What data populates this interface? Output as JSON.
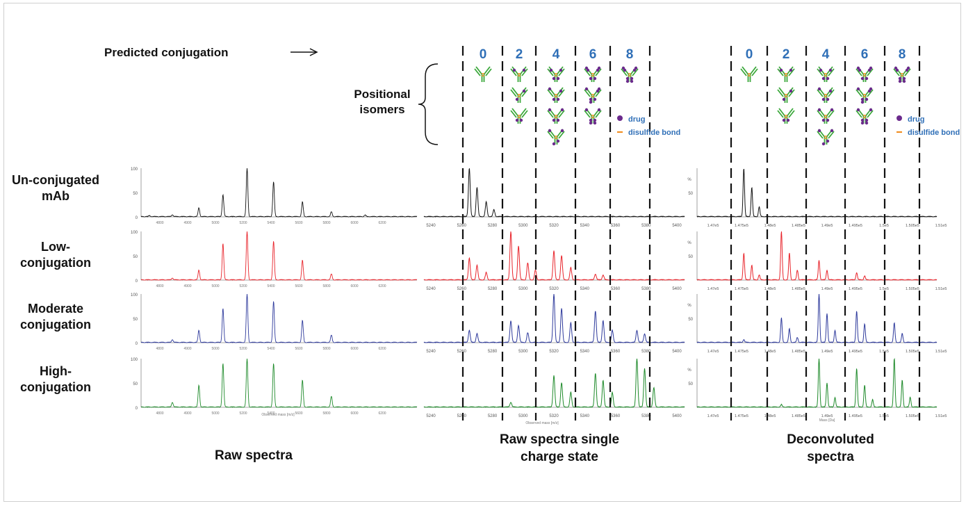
{
  "labels": {
    "predicted": "Predicted conjugation",
    "positional": "Positional isomers",
    "rows": [
      "Un-conjugated mAb",
      "Low-conjugation",
      "Moderate conjugation",
      "High-conjugation"
    ],
    "footers": [
      "Raw spectra",
      "Raw spectra single charge state",
      "Deconvoluted spectra"
    ],
    "legend_drug": "drug",
    "legend_disulfide": "disulfide bond",
    "conj_numbers": [
      "0",
      "2",
      "4",
      "6",
      "8"
    ]
  },
  "isomer_counts": [
    1,
    3,
    4,
    3,
    1
  ],
  "colors": {
    "unconjugated": "#111111",
    "low": "#e8232a",
    "moderate": "#2e3a9c",
    "high": "#1e8a2a",
    "number_blue": "#2f6fb7",
    "antibody_green": "#3aa83a",
    "drug": "#6b2a8c",
    "disulfide": "#f08a1a"
  },
  "chart_data": [
    {
      "type": "line",
      "title": "Raw spectra",
      "xlabel": "Observed mass [m/z]",
      "ylabel": "",
      "x_ticks": [
        "4800",
        "4900",
        "5000",
        "5200",
        "5400",
        "5600",
        "5800",
        "6000",
        "6200"
      ],
      "y_ticks": [
        "0",
        "50",
        "100"
      ],
      "ylim": [
        0,
        100
      ],
      "series": [
        {
          "name": "Un-conjugated mAb",
          "peaks": [
            [
              4805,
              2
            ],
            [
              4900,
              4
            ],
            [
              5010,
              18
            ],
            [
              5110,
              45
            ],
            [
              5210,
              100
            ],
            [
              5320,
              72
            ],
            [
              5440,
              30
            ],
            [
              5560,
              10
            ],
            [
              5700,
              3
            ]
          ]
        },
        {
          "name": "Low-conjugation",
          "peaks": [
            [
              4900,
              4
            ],
            [
              5010,
              20
            ],
            [
              5110,
              75
            ],
            [
              5210,
              100
            ],
            [
              5320,
              80
            ],
            [
              5440,
              40
            ],
            [
              5560,
              12
            ]
          ]
        },
        {
          "name": "Moderate conjugation",
          "peaks": [
            [
              4900,
              6
            ],
            [
              5010,
              25
            ],
            [
              5110,
              70
            ],
            [
              5210,
              100
            ],
            [
              5320,
              85
            ],
            [
              5440,
              45
            ],
            [
              5560,
              15
            ]
          ]
        },
        {
          "name": "High-conjugation",
          "peaks": [
            [
              4900,
              10
            ],
            [
              5010,
              45
            ],
            [
              5110,
              90
            ],
            [
              5210,
              100
            ],
            [
              5320,
              90
            ],
            [
              5440,
              55
            ],
            [
              5560,
              22
            ]
          ]
        }
      ]
    },
    {
      "type": "line",
      "title": "Raw spectra single charge state",
      "xlabel": "Observed mass [m/z]",
      "ylabel": "",
      "x_ticks": [
        "5240",
        "5260",
        "5280",
        "5300",
        "5320",
        "5340",
        "5360",
        "5380",
        "5400"
      ],
      "xlim": [
        5232,
        5418
      ],
      "ylim": [
        0,
        100
      ],
      "series": [
        {
          "name": "Un-conjugated mAb",
          "peaks": [
            [
              5265,
              100
            ],
            [
              5270,
              60
            ],
            [
              5276,
              30
            ],
            [
              5281,
              14
            ]
          ]
        },
        {
          "name": "Low-conjugation",
          "peaks": [
            [
              5265,
              45
            ],
            [
              5270,
              30
            ],
            [
              5276,
              15
            ],
            [
              5292,
              100
            ],
            [
              5297,
              70
            ],
            [
              5303,
              35
            ],
            [
              5308,
              20
            ],
            [
              5320,
              60
            ],
            [
              5325,
              50
            ],
            [
              5331,
              25
            ],
            [
              5347,
              12
            ],
            [
              5352,
              10
            ]
          ]
        },
        {
          "name": "Moderate conjugation",
          "peaks": [
            [
              5265,
              25
            ],
            [
              5270,
              18
            ],
            [
              5292,
              45
            ],
            [
              5297,
              35
            ],
            [
              5303,
              20
            ],
            [
              5320,
              100
            ],
            [
              5325,
              70
            ],
            [
              5331,
              40
            ],
            [
              5347,
              65
            ],
            [
              5352,
              45
            ],
            [
              5358,
              25
            ],
            [
              5374,
              25
            ],
            [
              5379,
              18
            ]
          ]
        },
        {
          "name": "High-conjugation",
          "peaks": [
            [
              5292,
              10
            ],
            [
              5320,
              65
            ],
            [
              5325,
              50
            ],
            [
              5331,
              30
            ],
            [
              5347,
              70
            ],
            [
              5352,
              55
            ],
            [
              5358,
              30
            ],
            [
              5374,
              100
            ],
            [
              5379,
              80
            ],
            [
              5385,
              40
            ]
          ]
        }
      ]
    },
    {
      "type": "line",
      "title": "Deconvoluted spectra",
      "xlabel": "Mass [Da]",
      "ylabel": "%",
      "x_ticks": [
        "1.47e5",
        "1.475e5",
        "1.48e5",
        "1.485e5",
        "1.49e5",
        "1.495e5",
        "1.5e5",
        "1.505e5",
        "1.51e5"
      ],
      "y_ticks": [
        "50"
      ],
      "xlim": [
        146500,
        151200
      ],
      "ylim": [
        0,
        100
      ],
      "series": [
        {
          "name": "Un-conjugated mAb",
          "peaks": [
            [
              147540,
              100
            ],
            [
              147680,
              60
            ],
            [
              147810,
              20
            ]
          ]
        },
        {
          "name": "Low-conjugation",
          "peaks": [
            [
              147540,
              55
            ],
            [
              147680,
              30
            ],
            [
              147810,
              10
            ],
            [
              148200,
              100
            ],
            [
              148340,
              55
            ],
            [
              148480,
              20
            ],
            [
              148860,
              40
            ],
            [
              149000,
              20
            ],
            [
              149520,
              15
            ],
            [
              149660,
              8
            ]
          ]
        },
        {
          "name": "Moderate conjugation",
          "peaks": [
            [
              147540,
              6
            ],
            [
              148200,
              50
            ],
            [
              148340,
              28
            ],
            [
              148480,
              10
            ],
            [
              148860,
              100
            ],
            [
              149000,
              60
            ],
            [
              149140,
              25
            ],
            [
              149520,
              65
            ],
            [
              149660,
              38
            ],
            [
              150180,
              40
            ],
            [
              150320,
              18
            ]
          ]
        },
        {
          "name": "High-conjugation",
          "peaks": [
            [
              148200,
              5
            ],
            [
              148860,
              100
            ],
            [
              149000,
              50
            ],
            [
              149140,
              20
            ],
            [
              149520,
              80
            ],
            [
              149660,
              45
            ],
            [
              149800,
              15
            ],
            [
              150180,
              100
            ],
            [
              150320,
              55
            ],
            [
              150460,
              20
            ]
          ]
        }
      ]
    }
  ]
}
